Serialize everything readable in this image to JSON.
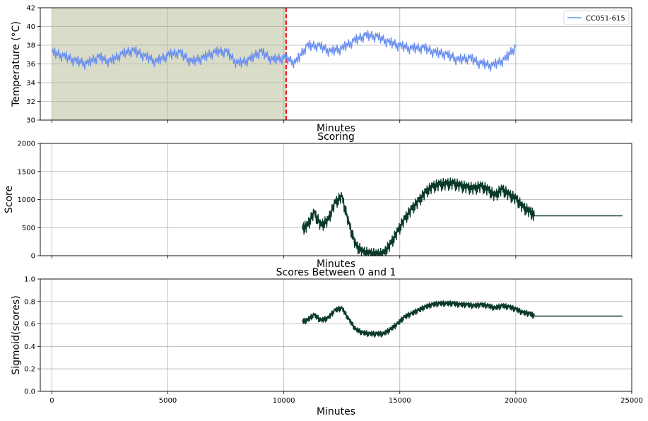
{
  "chart_data": [
    {
      "type": "line",
      "title": "",
      "xlabel": "Minutes",
      "ylabel": "Temperature (°C)",
      "xlim": [
        -500,
        25000
      ],
      "ylim": [
        30,
        42
      ],
      "yticks": [
        "30",
        "32",
        "34",
        "36",
        "38",
        "40",
        "42"
      ],
      "grid": true,
      "legend": {
        "position": "top-right",
        "entries": [
          "CC051-615"
        ]
      },
      "shaded_region": {
        "x0": 0,
        "x1": 10100,
        "color": "#d9dcc8"
      },
      "vline": {
        "x": 10100,
        "color": "#e81010",
        "style": "dashed"
      },
      "series": [
        {
          "name": "CC051-615",
          "color": "#6b8ff0",
          "x": [
            0,
            500,
            1000,
            1500,
            2000,
            2500,
            3000,
            3500,
            4000,
            4500,
            5000,
            5500,
            6000,
            6500,
            7000,
            7500,
            8000,
            8500,
            9000,
            9500,
            10000,
            10500,
            11000,
            11500,
            12000,
            12500,
            13000,
            13500,
            14000,
            14500,
            15000,
            15500,
            16000,
            16500,
            17000,
            17500,
            18000,
            18500,
            19000,
            19500,
            20000
          ],
          "y": [
            37.2,
            36.8,
            36.3,
            36.0,
            36.7,
            36.2,
            37.0,
            37.4,
            36.8,
            36.2,
            36.9,
            37.2,
            36.2,
            36.6,
            37.2,
            37.3,
            36.0,
            36.4,
            37.3,
            36.4,
            36.6,
            36.1,
            37.9,
            37.9,
            37.3,
            37.6,
            38.4,
            39.0,
            38.9,
            38.3,
            37.9,
            37.6,
            37.7,
            37.2,
            37.0,
            36.4,
            36.6,
            36.0,
            35.8,
            36.4,
            37.8
          ]
        }
      ]
    },
    {
      "type": "line",
      "title": "Scoring",
      "xlabel": "Minutes",
      "ylabel": "Score",
      "xlim": [
        -500,
        25000
      ],
      "ylim": [
        0,
        2000
      ],
      "yticks": [
        "0",
        "500",
        "1000",
        "1500",
        "2000"
      ],
      "grid": true,
      "series": [
        {
          "color": "#0b3a2a",
          "x": [
            10800,
            11000,
            11300,
            11600,
            11900,
            12200,
            12500,
            12800,
            13100,
            13400,
            13700,
            14000,
            14300,
            14600,
            14900,
            15200,
            15500,
            15800,
            16100,
            16400,
            16700,
            17000,
            17300,
            17600,
            17900,
            18200,
            18500,
            18800,
            19100,
            19400,
            19700,
            20000,
            20300,
            20600,
            20800,
            22000,
            23500,
            24600
          ],
          "y": [
            480,
            520,
            760,
            530,
            620,
            930,
            1050,
            570,
            180,
            60,
            30,
            15,
            30,
            200,
            420,
            640,
            820,
            960,
            1120,
            1220,
            1260,
            1270,
            1280,
            1240,
            1210,
            1190,
            1230,
            1170,
            1060,
            1180,
            1080,
            1010,
            860,
            780,
            710,
            710,
            710,
            710
          ]
        }
      ]
    },
    {
      "type": "line",
      "title": "Scores Between 0 and 1",
      "xlabel": "Minutes",
      "ylabel": "Sigmoid(scores)",
      "xlim": [
        -500,
        25000
      ],
      "ylim": [
        0.0,
        1.0
      ],
      "yticks": [
        "0.0",
        "0.2",
        "0.4",
        "0.6",
        "0.8",
        "1.0"
      ],
      "xticks": [
        "0",
        "5000",
        "10000",
        "15000",
        "20000",
        "25000"
      ],
      "grid": true,
      "series": [
        {
          "color": "#0b3a2a",
          "x": [
            10800,
            11000,
            11300,
            11600,
            11900,
            12200,
            12500,
            12800,
            13100,
            13400,
            13700,
            14000,
            14300,
            14600,
            14900,
            15200,
            15500,
            15800,
            16100,
            16400,
            16700,
            17000,
            17300,
            17600,
            17900,
            18200,
            18500,
            18800,
            19100,
            19400,
            19700,
            20000,
            20300,
            20600,
            20800,
            22000,
            23500,
            24600
          ],
          "y": [
            0.62,
            0.63,
            0.68,
            0.63,
            0.65,
            0.72,
            0.74,
            0.64,
            0.55,
            0.52,
            0.51,
            0.51,
            0.51,
            0.55,
            0.6,
            0.66,
            0.69,
            0.72,
            0.75,
            0.77,
            0.78,
            0.78,
            0.78,
            0.77,
            0.77,
            0.76,
            0.77,
            0.76,
            0.74,
            0.76,
            0.75,
            0.73,
            0.7,
            0.69,
            0.67,
            0.67,
            0.67,
            0.67
          ]
        }
      ]
    }
  ]
}
